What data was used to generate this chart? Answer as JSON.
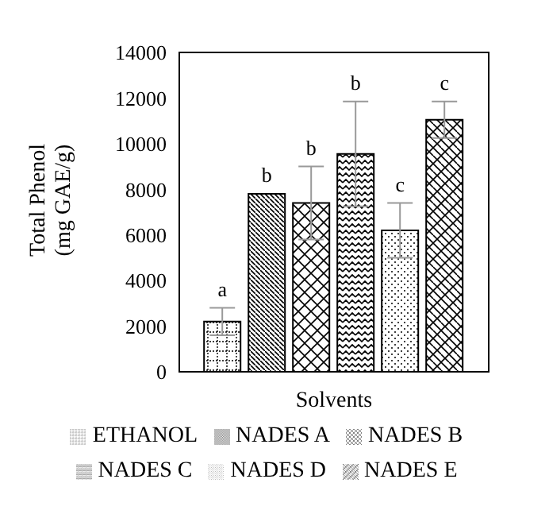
{
  "chart_data": {
    "type": "bar",
    "xlabel": "Solvents",
    "ylabel": "Total Phenol (mg GAE/g)",
    "categories": [
      null
    ],
    "series": [
      {
        "name": "ETHANOL",
        "color": "#000000",
        "values": [
          2200
        ],
        "errors": [
          600
        ]
      },
      {
        "name": "NADES A",
        "color": "#000000",
        "values": [
          7800
        ],
        "errors": [
          null
        ]
      },
      {
        "name": "NADES B",
        "color": "#000000",
        "values": [
          7400
        ],
        "errors": [
          1600
        ]
      },
      {
        "name": "NADES C",
        "color": "#000000",
        "values": [
          9550
        ],
        "errors": [
          2300
        ]
      },
      {
        "name": "NADES D",
        "color": "#000000",
        "values": [
          6200
        ],
        "errors": [
          1200
        ]
      },
      {
        "name": "NADES E",
        "color": "#000000",
        "values": [
          11050
        ],
        "errors": [
          800
        ]
      }
    ],
    "annotations": [
      "a",
      "b",
      "b",
      "b",
      "c",
      "c"
    ],
    "ylim": [
      0,
      14000
    ],
    "yticks": [
      0,
      2000,
      4000,
      6000,
      8000,
      10000,
      12000,
      14000
    ],
    "grid": false,
    "legend": "bottom"
  }
}
